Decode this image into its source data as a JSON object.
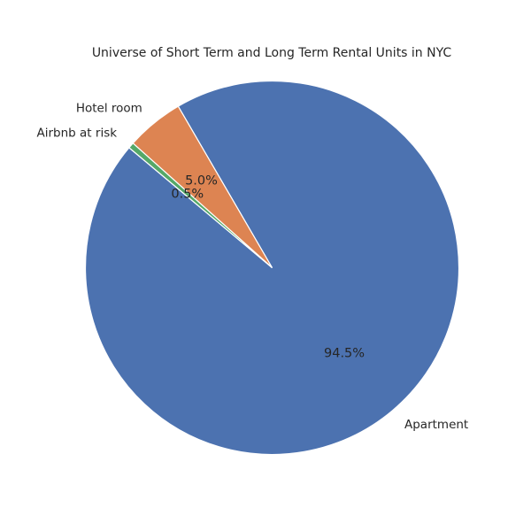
{
  "chart_data": {
    "type": "pie",
    "title": "Universe of Short Term and Long Term Rental Units in NYC",
    "categories": [
      "Apartment",
      "Hotel room",
      "Airbnb at risk"
    ],
    "values": [
      94.5,
      5.0,
      0.5
    ],
    "percent_labels": [
      "94.5%",
      "5.0%",
      "0.5%"
    ],
    "colors": [
      "#4c72b0",
      "#dd8452",
      "#55a868"
    ],
    "start_angle_deg": 140,
    "direction": "counterclockwise"
  }
}
